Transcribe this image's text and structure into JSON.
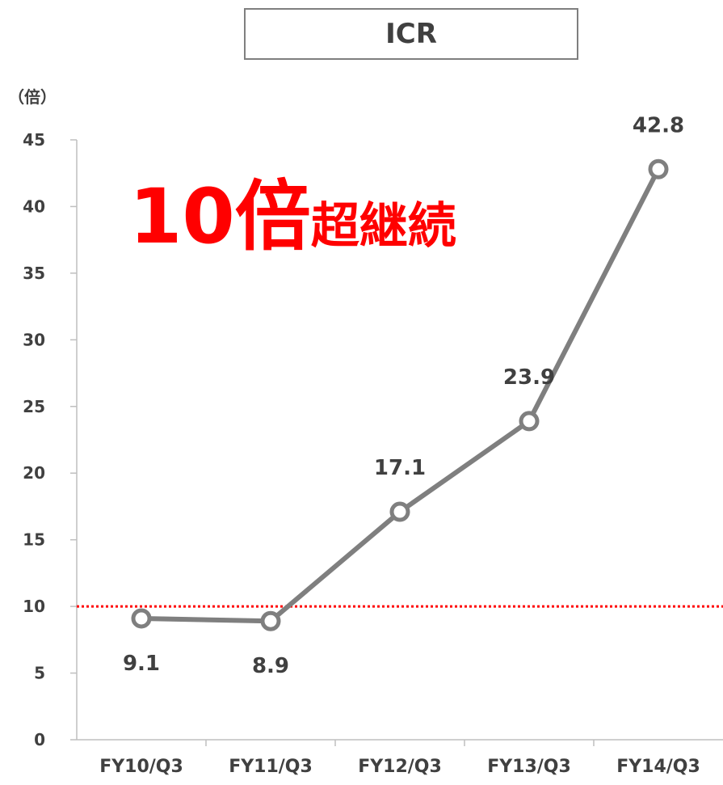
{
  "chart_data": {
    "type": "line",
    "title": "ICR",
    "ylabel": "（倍）",
    "categories": [
      "FY10/Q3",
      "FY11/Q3",
      "FY12/Q3",
      "FY13/Q3",
      "FY14/Q3"
    ],
    "series": [
      {
        "values": [
          9.1,
          8.9,
          17.1,
          23.9,
          42.8
        ],
        "color": "#7f7f7f"
      }
    ],
    "data_labels": [
      "9.1",
      "8.9",
      "17.1",
      "23.9",
      "42.8"
    ],
    "ylim": [
      0,
      45
    ],
    "yticks": [
      0,
      5,
      10,
      15,
      20,
      25,
      30,
      35,
      40,
      45
    ],
    "grid": false,
    "reference_line": {
      "value": 10,
      "style": "dotted",
      "color": "#ff0000"
    },
    "annotation": {
      "big": "10倍",
      "small": "超継続",
      "color": "#ff0000"
    }
  }
}
